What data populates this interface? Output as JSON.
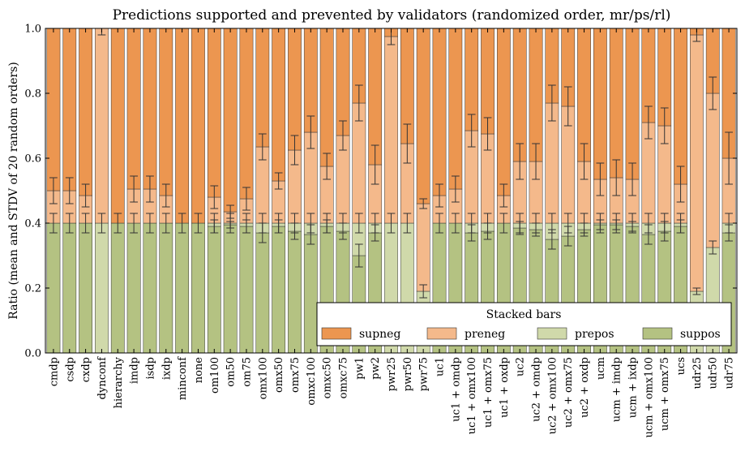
{
  "chart_data": {
    "type": "bar",
    "stacked": true,
    "title": "Predictions supported and prevented by validators (randomized order, mr/ps/rl)",
    "xlabel": "",
    "ylabel": "Ratio (mean and STDV of 20 random orders)",
    "ylim": [
      0,
      1.0
    ],
    "yticks": [
      "0.0",
      "0.2",
      "0.4",
      "0.6",
      "0.8",
      "1.0"
    ],
    "grid": false,
    "legend": {
      "title": "Stacked bars",
      "placement": "bottom-right",
      "entries": [
        "supneg",
        "preneg",
        "prepos",
        "suppos"
      ]
    },
    "colors": {
      "supneg": "#ec9650",
      "preneg": "#f4b98b",
      "prepos": "#d0d9aa",
      "suppos": "#b4c282",
      "bar_edge": "#333333",
      "error_bar": "#333333"
    },
    "categories": [
      "cmdp",
      "csdp",
      "cxdp",
      "dynconf",
      "hierarchy",
      "imdp",
      "isdp",
      "ixdp",
      "minconf",
      "none",
      "om100",
      "om50",
      "om75",
      "omx100",
      "omx50",
      "omx75",
      "omxc100",
      "omxc50",
      "omxc75",
      "pw1",
      "pw2",
      "pwr25",
      "pwr50",
      "pwr75",
      "uc1",
      "uc1 + omdp",
      "uc1 + omx100",
      "uc1 + omx75",
      "uc1 + oxdp",
      "uc2",
      "uc2 + omdp",
      "uc2 + omx100",
      "uc2 + omx75",
      "uc2 + oxdp",
      "ucm",
      "ucm + imdp",
      "ucm + ixdp",
      "ucm + omx100",
      "ucm + omx75",
      "ucs",
      "udr25",
      "udr50",
      "udr75"
    ],
    "series": [
      {
        "name": "suppos",
        "values": [
          0.4,
          0.4,
          0.4,
          0.0,
          0.4,
          0.4,
          0.4,
          0.4,
          0.4,
          0.4,
          0.39,
          0.395,
          0.39,
          0.37,
          0.39,
          0.375,
          0.365,
          0.39,
          0.375,
          0.3,
          0.37,
          0.0,
          0.0,
          0.0,
          0.4,
          0.4,
          0.37,
          0.375,
          0.4,
          0.385,
          0.38,
          0.35,
          0.36,
          0.38,
          0.395,
          0.395,
          0.39,
          0.365,
          0.375,
          0.39,
          0.0,
          0.0,
          0.37
        ]
      },
      {
        "name": "prepos",
        "values": [
          0.0,
          0.0,
          0.0,
          0.4,
          0.0,
          0.0,
          0.0,
          0.0,
          0.0,
          0.0,
          0.01,
          0.005,
          0.01,
          0.03,
          0.01,
          0.025,
          0.035,
          0.01,
          0.025,
          0.1,
          0.03,
          0.4,
          0.4,
          0.19,
          0.0,
          0.0,
          0.03,
          0.025,
          0.0,
          0.015,
          0.02,
          0.05,
          0.04,
          0.02,
          0.005,
          0.005,
          0.01,
          0.035,
          0.025,
          0.01,
          0.19,
          0.325,
          0.03
        ]
      },
      {
        "name": "preneg",
        "values": [
          0.1,
          0.1,
          0.085,
          0.6,
          0.0,
          0.105,
          0.105,
          0.085,
          0.0,
          0.0,
          0.08,
          0.035,
          0.075,
          0.235,
          0.13,
          0.225,
          0.28,
          0.175,
          0.27,
          0.37,
          0.18,
          0.575,
          0.245,
          0.27,
          0.085,
          0.105,
          0.285,
          0.275,
          0.085,
          0.19,
          0.19,
          0.37,
          0.36,
          0.19,
          0.135,
          0.14,
          0.135,
          0.31,
          0.3,
          0.12,
          0.79,
          0.475,
          0.2
        ]
      },
      {
        "name": "supneg",
        "values": [
          0.5,
          0.5,
          0.515,
          0.0,
          0.6,
          0.495,
          0.495,
          0.515,
          0.6,
          0.6,
          0.52,
          0.565,
          0.525,
          0.365,
          0.47,
          0.375,
          0.32,
          0.425,
          0.33,
          0.23,
          0.42,
          0.025,
          0.355,
          0.54,
          0.515,
          0.495,
          0.315,
          0.325,
          0.515,
          0.41,
          0.41,
          0.23,
          0.24,
          0.41,
          0.465,
          0.46,
          0.465,
          0.29,
          0.3,
          0.48,
          0.02,
          0.2,
          0.4
        ]
      }
    ],
    "error_bars": {
      "lower_boundary": {
        "values": [
          0.4,
          0.4,
          0.4,
          0.4,
          0.4,
          0.4,
          0.4,
          0.4,
          0.4,
          0.4,
          0.4,
          0.4,
          0.4,
          0.4,
          0.4,
          0.4,
          0.4,
          0.4,
          0.4,
          0.4,
          0.4,
          0.4,
          0.4,
          0.19,
          0.4,
          0.4,
          0.4,
          0.4,
          0.4,
          0.4,
          0.4,
          0.4,
          0.4,
          0.4,
          0.4,
          0.4,
          0.4,
          0.4,
          0.4,
          0.4,
          0.19,
          0.325,
          0.4
        ],
        "err": [
          0.03,
          0.03,
          0.03,
          0.03,
          0.03,
          0.03,
          0.03,
          0.03,
          0.03,
          0.03,
          0.03,
          0.03,
          0.03,
          0.03,
          0.03,
          0.03,
          0.03,
          0.03,
          0.03,
          0.03,
          0.03,
          0.03,
          0.03,
          0.02,
          0.03,
          0.03,
          0.03,
          0.03,
          0.03,
          0.03,
          0.03,
          0.03,
          0.03,
          0.03,
          0.03,
          0.03,
          0.03,
          0.03,
          0.03,
          0.03,
          0.01,
          0.02,
          0.03
        ]
      },
      "suppos_top": {
        "values": [
          0,
          0,
          0,
          0,
          0,
          0,
          0,
          0,
          0,
          0,
          0.39,
          0.395,
          0.39,
          0.37,
          0.39,
          0.375,
          0.365,
          0.39,
          0.375,
          0.3,
          0.37,
          0,
          0,
          0,
          0,
          0,
          0.37,
          0.375,
          0,
          0.385,
          0.38,
          0.35,
          0.36,
          0.38,
          0.395,
          0.395,
          0.39,
          0.365,
          0.375,
          0.39,
          0,
          0,
          0.37
        ],
        "err": [
          0,
          0,
          0,
          0,
          0,
          0,
          0,
          0,
          0,
          0,
          0.02,
          0.01,
          0.02,
          0.03,
          0.02,
          0.025,
          0.03,
          0.02,
          0.025,
          0.035,
          0.025,
          0,
          0,
          0,
          0,
          0,
          0.025,
          0.025,
          0,
          0.02,
          0.02,
          0.03,
          0.03,
          0.02,
          0.015,
          0.015,
          0.015,
          0.03,
          0.03,
          0.02,
          0,
          0,
          0.025
        ]
      },
      "preneg_top": {
        "values": [
          0.5,
          0.5,
          0.485,
          1.0,
          0,
          0.505,
          0.505,
          0.485,
          0,
          0,
          0.48,
          0.435,
          0.475,
          0.635,
          0.53,
          0.625,
          0.68,
          0.575,
          0.67,
          0.77,
          0.58,
          0.975,
          0.645,
          0.46,
          0.485,
          0.505,
          0.685,
          0.675,
          0.485,
          0.59,
          0.59,
          0.77,
          0.76,
          0.59,
          0.535,
          0.54,
          0.535,
          0.71,
          0.7,
          0.52,
          0.98,
          0.8,
          0.6
        ],
        "err": [
          0.04,
          0.04,
          0.035,
          0.02,
          0,
          0.04,
          0.04,
          0.035,
          0,
          0,
          0.035,
          0.02,
          0.035,
          0.04,
          0.025,
          0.045,
          0.05,
          0.04,
          0.045,
          0.055,
          0.06,
          0.025,
          0.06,
          0.015,
          0.035,
          0.04,
          0.05,
          0.05,
          0.035,
          0.055,
          0.055,
          0.055,
          0.06,
          0.055,
          0.05,
          0.055,
          0.05,
          0.05,
          0.055,
          0.055,
          0.02,
          0.05,
          0.08
        ]
      }
    }
  }
}
